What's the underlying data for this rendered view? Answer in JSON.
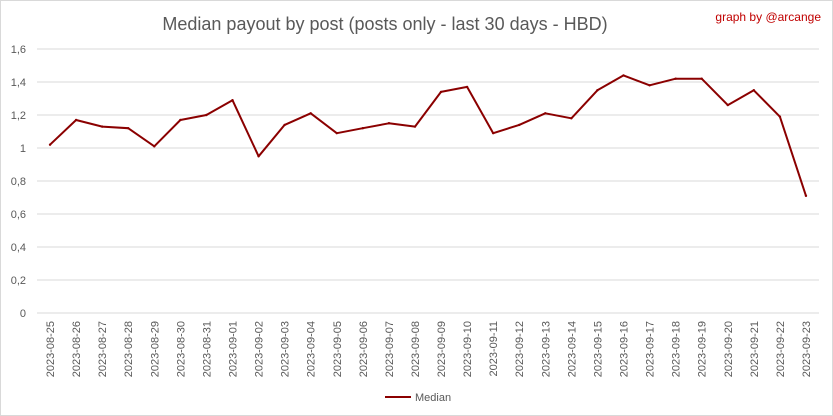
{
  "chart_data": {
    "type": "line",
    "title": "Median payout by post (posts only - last 30 days - HBD)",
    "credit": "graph by @arcange",
    "xlabel": "",
    "ylabel": "",
    "ylim": [
      0,
      1.6
    ],
    "yticks": [
      {
        "value": 0,
        "label": "0"
      },
      {
        "value": 0.2,
        "label": "0,2"
      },
      {
        "value": 0.4,
        "label": "0,4"
      },
      {
        "value": 0.6,
        "label": "0,6"
      },
      {
        "value": 0.8,
        "label": "0,8"
      },
      {
        "value": 1.0,
        "label": "1"
      },
      {
        "value": 1.2,
        "label": "1,2"
      },
      {
        "value": 1.4,
        "label": "1,4"
      },
      {
        "value": 1.6,
        "label": "1,6"
      }
    ],
    "grid": true,
    "legend_position": "bottom",
    "x": [
      "2023-08-25",
      "2023-08-26",
      "2023-08-27",
      "2023-08-28",
      "2023-08-29",
      "2023-08-30",
      "2023-08-31",
      "2023-09-01",
      "2023-09-02",
      "2023-09-03",
      "2023-09-04",
      "2023-09-05",
      "2023-09-06",
      "2023-09-07",
      "2023-09-08",
      "2023-09-09",
      "2023-09-10",
      "2023-09-11",
      "2023-09-12",
      "2023-09-13",
      "2023-09-14",
      "2023-09-15",
      "2023-09-16",
      "2023-09-17",
      "2023-09-18",
      "2023-09-19",
      "2023-09-20",
      "2023-09-21",
      "2023-09-22",
      "2023-09-23"
    ],
    "series": [
      {
        "name": "Median",
        "color": "#8b0000",
        "values": [
          1.02,
          1.17,
          1.13,
          1.12,
          1.01,
          1.17,
          1.2,
          1.29,
          0.95,
          1.14,
          1.21,
          1.09,
          1.12,
          1.15,
          1.13,
          1.34,
          1.37,
          1.09,
          1.14,
          1.21,
          1.18,
          1.35,
          1.44,
          1.38,
          1.42,
          1.42,
          1.26,
          1.35,
          1.19,
          0.71
        ]
      }
    ]
  }
}
